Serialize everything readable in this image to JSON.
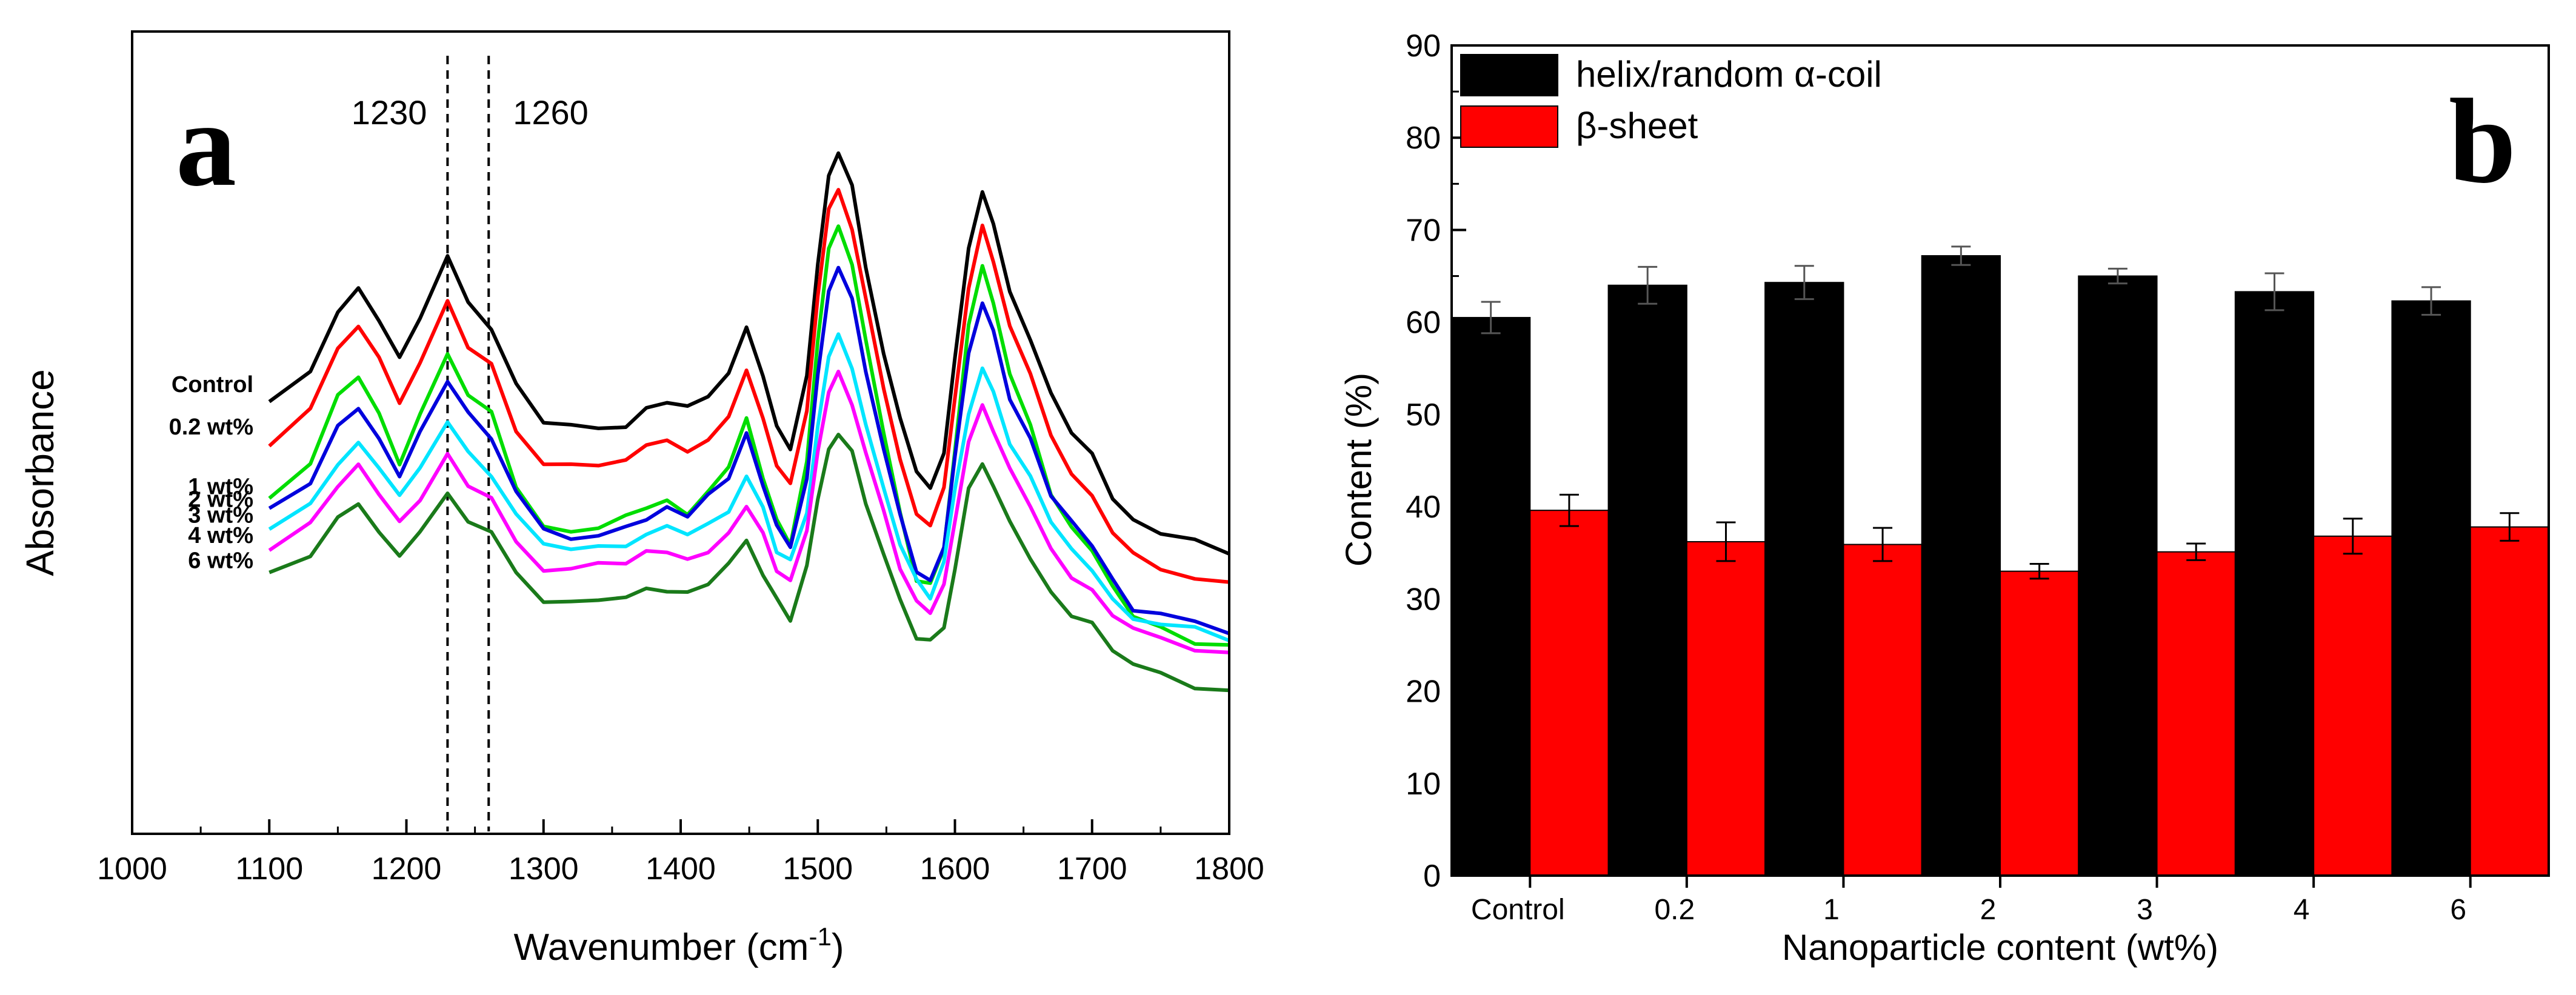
{
  "chart_data": [
    {
      "type": "line",
      "panel_label": "a",
      "xlabel": "Wavenumber (cm",
      "xlabel_superscript": "-1",
      "xlabel_suffix": ")",
      "ylabel": "Absorbance",
      "xlim": [
        1000,
        1800
      ],
      "xticks": [
        1000,
        1100,
        1200,
        1300,
        1400,
        1500,
        1600,
        1700,
        1800
      ],
      "y_ticks_shown": false,
      "reference_lines": [
        {
          "x": 1230,
          "label": "1230",
          "style": "dashed"
        },
        {
          "x": 1260,
          "label": "1260",
          "style": "dashed"
        }
      ],
      "profile_x": [
        1100,
        1130,
        1150,
        1165,
        1180,
        1195,
        1210,
        1230,
        1245,
        1262,
        1280,
        1300,
        1320,
        1340,
        1360,
        1375,
        1390,
        1405,
        1420,
        1435,
        1448,
        1460,
        1470,
        1480,
        1492,
        1500,
        1508,
        1515,
        1525,
        1535,
        1548,
        1560,
        1572,
        1582,
        1592,
        1600,
        1610,
        1620,
        1628,
        1640,
        1655,
        1670,
        1685,
        1700,
        1715,
        1730,
        1750,
        1775,
        1800
      ],
      "profile_y": [
        0.0,
        0.12,
        0.32,
        0.4,
        0.3,
        0.18,
        0.32,
        0.52,
        0.4,
        0.34,
        0.16,
        0.05,
        0.05,
        0.07,
        0.1,
        0.15,
        0.18,
        0.16,
        0.22,
        0.3,
        0.45,
        0.3,
        0.16,
        0.1,
        0.34,
        0.7,
        0.98,
        1.06,
        0.95,
        0.72,
        0.46,
        0.24,
        0.07,
        0.04,
        0.16,
        0.46,
        0.82,
        1.0,
        0.9,
        0.7,
        0.56,
        0.38,
        0.28,
        0.22,
        0.11,
        0.04,
        0.02,
        0.0,
        -0.01
      ],
      "series": [
        {
          "name": "Control",
          "label": "Control",
          "color": "#000000",
          "offset": 0.0,
          "scale": 1.0,
          "start": 0.385,
          "end": -0.085
        },
        {
          "name": "0.2 wt%",
          "label": "0.2 wt%",
          "color": "#FF0000",
          "offset": 0.0,
          "scale": 1.0,
          "start": 0.25,
          "end": -0.2
        },
        {
          "name": "1 wt%",
          "label": "1 wt%",
          "color": "#00DD00",
          "offset": 0.0,
          "scale": 1.09,
          "start": 0.06,
          "end": -0.405
        },
        {
          "name": "2 wt%",
          "label": "2 wt%",
          "color": "#0000DD",
          "offset": 0.0,
          "scale": 0.95,
          "start": 0.02,
          "end": -0.35
        },
        {
          "name": "3 wt%",
          "label": "3 wt%",
          "color": "#00E5FF",
          "offset": 0.0,
          "scale": 0.76,
          "start": -0.03,
          "end": -0.37
        },
        {
          "name": "4 wt%",
          "label": "4 wt%",
          "color": "#FF00FF",
          "offset": 0.0,
          "scale": 0.7,
          "start": -0.095,
          "end": -0.42
        },
        {
          "name": "6 wt%",
          "label": "6 wt%",
          "color": "#1A7A1A",
          "offset": 0.0,
          "scale": 0.63,
          "start": -0.175,
          "end": -0.535
        }
      ]
    },
    {
      "type": "bar",
      "panel_label": "b",
      "xlabel": "Nanoparticle content (wt%)",
      "ylabel": "Content (%)",
      "ylim": [
        0,
        90
      ],
      "yticks": [
        0,
        10,
        20,
        30,
        40,
        50,
        60,
        70,
        80,
        90
      ],
      "categories": [
        "Control",
        "0.2",
        "1",
        "2",
        "3",
        "4",
        "6"
      ],
      "legend_position": "top-left",
      "series": [
        {
          "name": "helix/random α-coil",
          "color": "#000000",
          "values": [
            60.5,
            64.0,
            64.3,
            67.2,
            65.0,
            63.3,
            62.3
          ],
          "errors": [
            1.7,
            2.0,
            1.8,
            1.0,
            0.8,
            2.0,
            1.5
          ]
        },
        {
          "name": "β-sheet",
          "color": "#FF0000",
          "values": [
            39.6,
            36.2,
            35.9,
            33.0,
            35.1,
            36.8,
            37.8
          ],
          "errors": [
            1.7,
            2.1,
            1.8,
            0.8,
            0.9,
            1.9,
            1.5
          ]
        }
      ]
    }
  ]
}
